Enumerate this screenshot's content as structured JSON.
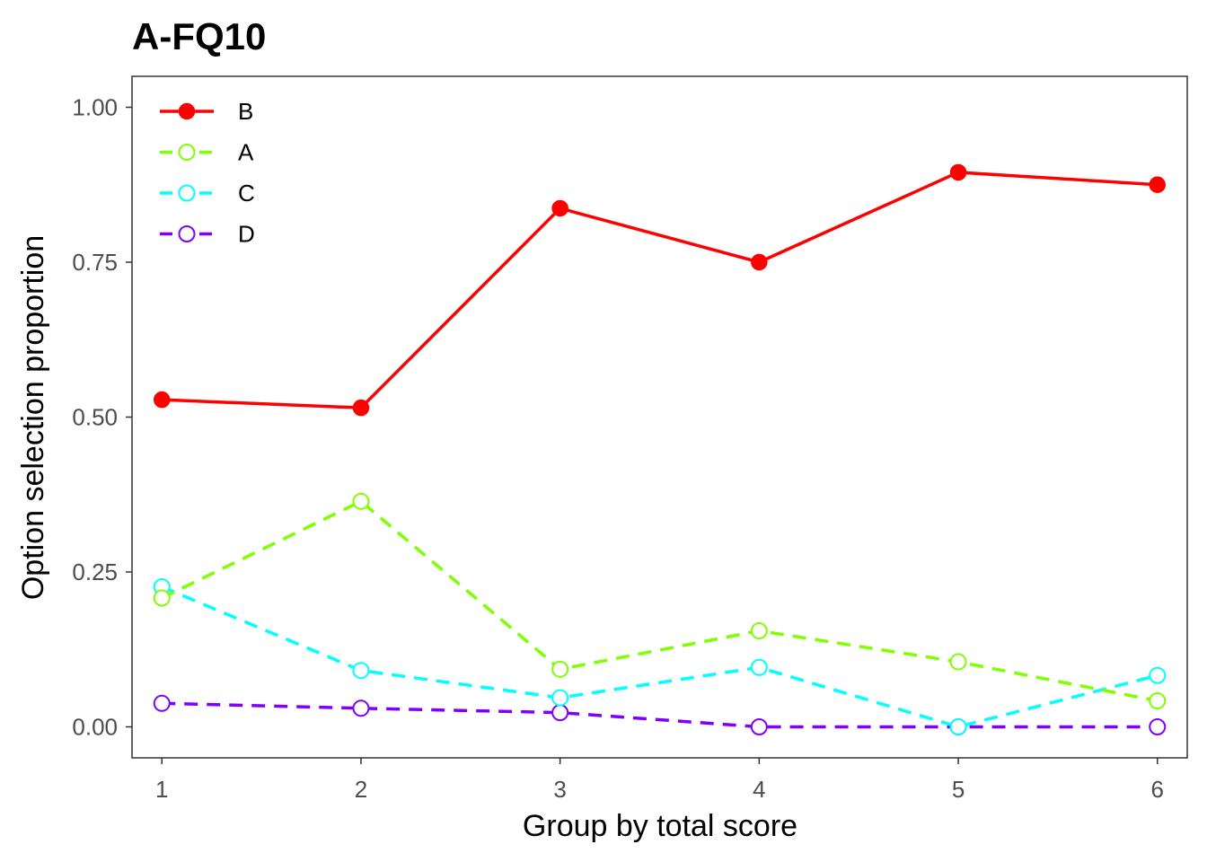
{
  "chart_data": {
    "type": "line",
    "title": "A-FQ10",
    "xlabel": "Group by total score",
    "ylabel": "Option selection proportion",
    "x": [
      1,
      2,
      3,
      4,
      5,
      6
    ],
    "x_ticks": [
      "1",
      "2",
      "3",
      "4",
      "5",
      "6"
    ],
    "y_ticks": [
      "0.00",
      "0.25",
      "0.50",
      "0.75",
      "1.00"
    ],
    "xlim": [
      0.85,
      6.15
    ],
    "ylim": [
      -0.05,
      1.05
    ],
    "grid": false,
    "legend_position": "top-left",
    "series": [
      {
        "name": "B",
        "color": "#ff0000",
        "line": "solid",
        "marker": "filled-circle",
        "values": [
          0.528,
          0.515,
          0.837,
          0.75,
          0.895,
          0.875
        ]
      },
      {
        "name": "A",
        "color": "#80ff00",
        "line": "dashed",
        "marker": "open-circle",
        "values": [
          0.208,
          0.364,
          0.093,
          0.155,
          0.105,
          0.042
        ]
      },
      {
        "name": "C",
        "color": "#00ffff",
        "line": "dashed",
        "marker": "open-circle",
        "values": [
          0.226,
          0.091,
          0.047,
          0.096,
          0.0,
          0.083
        ]
      },
      {
        "name": "D",
        "color": "#8000ff",
        "line": "dashed",
        "marker": "open-circle",
        "values": [
          0.038,
          0.03,
          0.023,
          0.0,
          0.0,
          0.0
        ]
      }
    ]
  }
}
